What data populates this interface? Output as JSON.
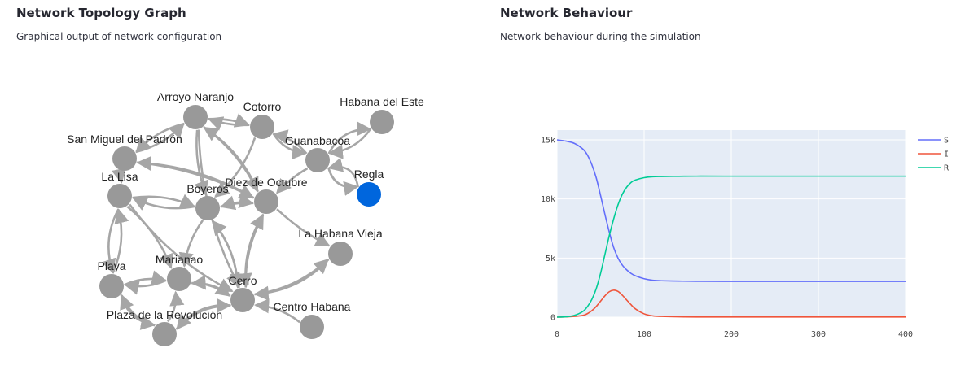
{
  "left": {
    "title": "Network Topology Graph",
    "subtitle": "Graphical output of network configuration"
  },
  "right": {
    "title": "Network Behaviour",
    "subtitle": "Network behaviour during the simulation"
  },
  "graph": {
    "node_color": "#999999",
    "highlight_color": "#0066dd",
    "edge_color": "#a6a6a6",
    "nodes": [
      {
        "id": "arroyo",
        "label": "Arroyo Naranjo"
      },
      {
        "id": "cotorro",
        "label": "Cotorro"
      },
      {
        "id": "este",
        "label": "Habana del Este"
      },
      {
        "id": "sanmiguel",
        "label": "San Miguel del Padrón"
      },
      {
        "id": "guanabacoa",
        "label": "Guanabacoa"
      },
      {
        "id": "lalisa",
        "label": "La Lisa"
      },
      {
        "id": "boyeros",
        "label": "Boyeros"
      },
      {
        "id": "diez",
        "label": "Diez de Octubre"
      },
      {
        "id": "regla",
        "label": "Regla",
        "highlight": true
      },
      {
        "id": "vieja",
        "label": "La Habana Vieja"
      },
      {
        "id": "playa",
        "label": "Playa"
      },
      {
        "id": "marianao",
        "label": "Marianao"
      },
      {
        "id": "cerro",
        "label": "Cerro"
      },
      {
        "id": "centro",
        "label": "Centro Habana"
      },
      {
        "id": "plaza",
        "label": "Plaza de la Revolución"
      }
    ]
  },
  "chart_data": {
    "type": "line",
    "x_range": [
      0,
      400
    ],
    "y_range": [
      0,
      15000
    ],
    "x_ticks": [
      {
        "value": 0,
        "label": "0"
      },
      {
        "value": 100,
        "label": "100"
      },
      {
        "value": 200,
        "label": "200"
      },
      {
        "value": 300,
        "label": "300"
      },
      {
        "value": 400,
        "label": "400"
      }
    ],
    "y_ticks": [
      {
        "value": 0,
        "label": "0"
      },
      {
        "value": 5000,
        "label": "5k"
      },
      {
        "value": 10000,
        "label": "10k"
      },
      {
        "value": 15000,
        "label": "15k"
      }
    ],
    "grid": true,
    "legend_position": "top-right",
    "plot_bg": "#e5ecf6",
    "series": [
      {
        "name": "S",
        "color": "#636efa",
        "x": [
          0,
          10,
          20,
          30,
          35,
          40,
          45,
          50,
          55,
          60,
          65,
          70,
          75,
          80,
          85,
          90,
          100,
          110,
          120,
          140,
          160,
          200,
          300,
          400
        ],
        "y": [
          15000,
          14900,
          14700,
          14200,
          13700,
          12900,
          11800,
          10300,
          8700,
          7200,
          5900,
          5000,
          4400,
          4000,
          3700,
          3500,
          3250,
          3120,
          3080,
          3050,
          3030,
          3020,
          3020,
          3020
        ]
      },
      {
        "name": "I",
        "color": "#ef553b",
        "x": [
          0,
          10,
          20,
          30,
          35,
          40,
          45,
          50,
          55,
          60,
          65,
          70,
          75,
          80,
          85,
          90,
          100,
          110,
          120,
          140,
          160,
          200,
          300,
          400
        ],
        "y": [
          0,
          20,
          60,
          150,
          300,
          550,
          900,
          1350,
          1800,
          2150,
          2280,
          2180,
          1850,
          1450,
          1050,
          700,
          280,
          110,
          60,
          25,
          15,
          10,
          10,
          10
        ]
      },
      {
        "name": "R",
        "color": "#00cc96",
        "x": [
          0,
          10,
          20,
          30,
          35,
          40,
          45,
          50,
          55,
          60,
          65,
          70,
          75,
          80,
          85,
          90,
          100,
          110,
          120,
          140,
          160,
          200,
          300,
          400
        ],
        "y": [
          0,
          30,
          150,
          500,
          900,
          1500,
          2400,
          3700,
          5300,
          6900,
          8300,
          9500,
          10400,
          11000,
          11400,
          11600,
          11800,
          11880,
          11900,
          11920,
          11930,
          11930,
          11930,
          11930
        ]
      }
    ]
  }
}
